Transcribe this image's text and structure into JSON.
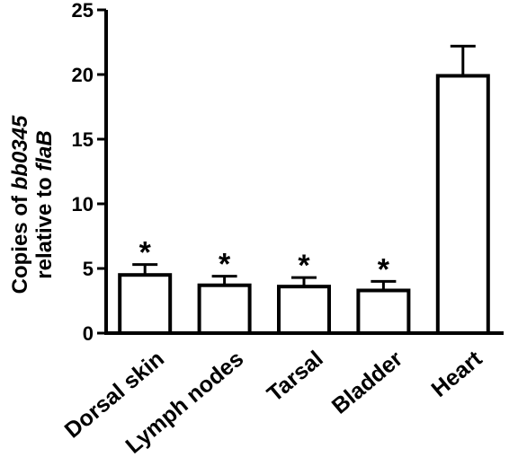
{
  "chart_data": {
    "type": "bar",
    "title": "",
    "ylabel": {
      "line1_prefix": "Copies of ",
      "line1_italic": "bb0345",
      "line2_prefix": "relative to ",
      "line2_italic": "flaB"
    },
    "xlabel": "",
    "categories": [
      "Dorsal skin",
      "Lymph nodes",
      "Tarsal",
      "Bladder",
      "Heart"
    ],
    "values": [
      4.5,
      3.7,
      3.6,
      3.3,
      19.9
    ],
    "errors": [
      0.8,
      0.7,
      0.7,
      0.7,
      2.3
    ],
    "significance": [
      "*",
      "*",
      "*",
      "*",
      ""
    ],
    "ylim": [
      0,
      25
    ],
    "yticks": [
      0,
      5,
      10,
      15,
      20,
      25
    ],
    "grid": false,
    "bar_fill": "#ffffff",
    "bar_stroke": "#000000"
  }
}
